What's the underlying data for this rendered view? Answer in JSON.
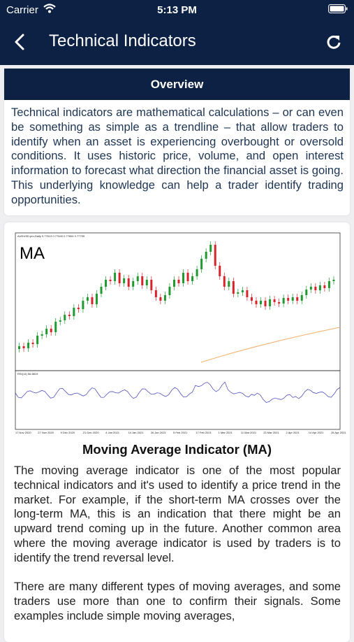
{
  "status_bar": {
    "carrier": "Carrier",
    "time": "5:13 PM"
  },
  "header": {
    "title": "Technical Indicators"
  },
  "overview": {
    "title": "Overview",
    "text": "Technical indicators are mathematical calculations – or can even be something as simple as a trendline – that allow traders to identify when an asset is experiencing overbought or oversold conditions. It uses historic price, volume, and open interest information to forecast what direction the financial asset is going. This underlying knowledge can help a trader identify trading opportunities."
  },
  "article": {
    "image": {
      "symbol": "AUDUSD.pro,Daily 0.77613 0.77640 0.77604 0.77759",
      "label": "MA",
      "indicator": "RSI(14) 56.8819",
      "dates": [
        "17 Nov 2020",
        "27 Nov 2020",
        "9 Dec 2020",
        "21 Dec 2020",
        "4 Jan 2021",
        "14 Jan 2021",
        "26 Jan 2021",
        "5 Feb 2021",
        "17 Feb 2021",
        "1 Mar 2021",
        "11 Mar 2021",
        "23 Mar 2021",
        "2 Apr 2021",
        "14 Apr 2021",
        "26 Apr 2021"
      ]
    },
    "heading": "Moving Average Indicator (MA)",
    "paragraphs": [
      "The moving average indicator is one of the most popular technical indicators and it's used to identify a price trend in the market. For example, if the short-term MA crosses over the long-term MA, this is an indication that there might be an upward trend coming up in the future. Another common area where the moving average indicator is used by traders is to identify the trend reversal level.",
      "There are many different types of moving averages, and some traders use more than one to confirm their signals. Some examples include simple moving averages,"
    ]
  }
}
